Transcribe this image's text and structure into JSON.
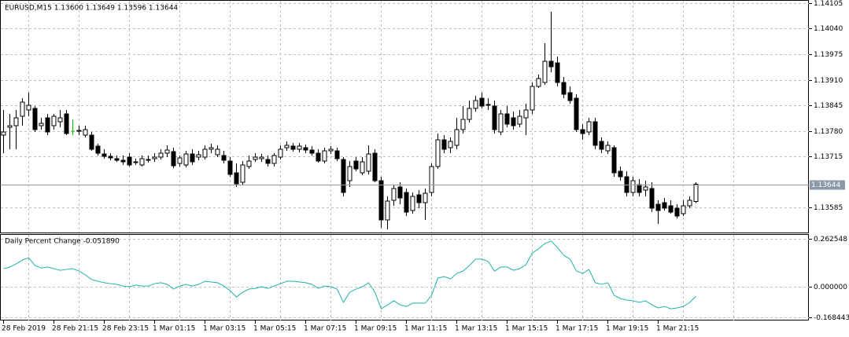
{
  "chart_data": {
    "type": "candlestick",
    "title": "EURUSD,M15  1.13600 1.13649 1.13596 1.13644",
    "categories": [
      "28 Feb 2019",
      null,
      null,
      null,
      null,
      null,
      null,
      null,
      "28 Feb 21:15",
      null,
      null,
      null,
      null,
      null,
      null,
      null,
      "28 Feb 23:15",
      null,
      null,
      null,
      null,
      null,
      null,
      null,
      "1 Mar 01:15",
      null,
      null,
      null,
      null,
      null,
      null,
      null,
      "1 Mar 03:15",
      null,
      null,
      null,
      null,
      null,
      null,
      null,
      "1 Mar 05:15",
      null,
      null,
      null,
      null,
      null,
      null,
      null,
      "1 Mar 07:15",
      null,
      null,
      null,
      null,
      null,
      null,
      null,
      "1 Mar 09:15",
      null,
      null,
      null,
      null,
      null,
      null,
      null,
      "1 Mar 11:15",
      null,
      null,
      null,
      null,
      null,
      null,
      null,
      "1 Mar 13:15",
      null,
      null,
      null,
      null,
      null,
      null,
      null,
      "1 Mar 15:15",
      null,
      null,
      null,
      null,
      null,
      null,
      null,
      "1 Mar 17:15",
      null,
      null,
      null,
      null,
      null,
      null,
      null,
      "1 Mar 19:15",
      null,
      null,
      null,
      null,
      null,
      null,
      null,
      "1 Mar 21:15",
      null,
      null,
      null,
      null,
      null,
      null
    ],
    "open": [
      1.13769,
      1.13789,
      1.13793,
      1.13817,
      1.13833,
      1.13837,
      1.13793,
      1.13813,
      1.13793,
      1.13803,
      1.13823,
      1.13779,
      1.13779,
      1.13769,
      1.13769,
      1.13741,
      1.13721,
      1.13715,
      1.13709,
      1.13705,
      1.13713,
      1.13701,
      1.13693,
      1.13707,
      1.13709,
      1.13713,
      1.13723,
      1.13727,
      1.13697,
      1.13693,
      1.13721,
      1.13713,
      1.13713,
      1.13733,
      1.13719,
      1.13717,
      1.13703,
      1.13673,
      1.13649,
      1.13689,
      1.13707,
      1.13709,
      1.13707,
      1.13697,
      1.13713,
      1.13737,
      1.13741,
      1.13733,
      1.13737,
      1.13731,
      1.13723,
      1.13703,
      1.13729,
      1.13729,
      1.13707,
      1.13653,
      1.13703,
      1.13673,
      1.13677,
      1.13723,
      1.13653,
      1.13553,
      1.13603,
      1.13637,
      1.13623,
      1.13577,
      1.13617,
      1.13597,
      1.13623,
      1.13689,
      1.13757,
      1.13737,
      1.13743,
      1.13783,
      1.13809,
      1.13837,
      1.13863,
      1.13847,
      1.13843,
      1.13777,
      1.13823,
      1.13813,
      1.13797,
      1.13813,
      1.13833,
      1.13893,
      1.13903,
      1.13957,
      1.13953,
      1.13903,
      1.13877,
      1.13863,
      1.13783,
      1.13777,
      1.13803,
      1.13753,
      1.13729,
      1.13737,
      1.13677,
      1.13663,
      1.13623,
      1.13643,
      1.13629,
      1.13633,
      1.13593,
      1.13597,
      1.13589,
      1.13583,
      1.13569,
      1.13589,
      1.136
    ],
    "high": [
      1.13833,
      1.13823,
      1.13833,
      1.13863,
      1.13877,
      1.13843,
      1.13813,
      1.13823,
      1.13823,
      1.13833,
      1.13833,
      1.13809,
      1.13793,
      1.13793,
      1.13777,
      1.13747,
      1.13733,
      1.13723,
      1.13717,
      1.13717,
      1.13723,
      1.13709,
      1.13717,
      1.13717,
      1.13723,
      1.13733,
      1.13743,
      1.13737,
      1.13717,
      1.13729,
      1.13733,
      1.13729,
      1.13743,
      1.13747,
      1.13743,
      1.13729,
      1.13713,
      1.13697,
      1.13703,
      1.13717,
      1.13723,
      1.13721,
      1.13717,
      1.13723,
      1.13743,
      1.13753,
      1.13749,
      1.13749,
      1.13745,
      1.13741,
      1.13733,
      1.13737,
      1.13741,
      1.13737,
      1.13713,
      1.13703,
      1.13713,
      1.13713,
      1.13743,
      1.13733,
      1.13663,
      1.13613,
      1.13643,
      1.13649,
      1.13633,
      1.13623,
      1.13629,
      1.13633,
      1.13697,
      1.13773,
      1.13769,
      1.13763,
      1.13813,
      1.13843,
      1.13857,
      1.13869,
      1.13877,
      1.13863,
      1.13857,
      1.13833,
      1.13843,
      1.13829,
      1.13833,
      1.13849,
      1.13903,
      1.13923,
      1.14003,
      1.14083,
      1.13969,
      1.13917,
      1.13893,
      1.13873,
      1.13797,
      1.13813,
      1.13813,
      1.13763,
      1.13753,
      1.13743,
      1.13689,
      1.13677,
      1.13663,
      1.13657,
      1.13653,
      1.13649,
      1.13603,
      1.13609,
      1.13603,
      1.13593,
      1.13603,
      1.13613,
      1.13649
    ],
    "low": [
      1.13723,
      1.13733,
      1.13733,
      1.13793,
      1.13817,
      1.13777,
      1.13783,
      1.13769,
      1.13783,
      1.13789,
      1.13769,
      1.13769,
      1.13769,
      1.13763,
      1.13729,
      1.13717,
      1.13709,
      1.13705,
      1.13701,
      1.13693,
      1.13689,
      1.13693,
      1.13689,
      1.13699,
      1.13701,
      1.13707,
      1.13713,
      1.13685,
      1.13689,
      1.13687,
      1.13693,
      1.13705,
      1.13707,
      1.13723,
      1.13713,
      1.13697,
      1.13663,
      1.13637,
      1.13643,
      1.13683,
      1.13701,
      1.13701,
      1.13689,
      1.13689,
      1.13707,
      1.13729,
      1.13727,
      1.13725,
      1.13723,
      1.13717,
      1.13699,
      1.13697,
      1.13721,
      1.13703,
      1.13613,
      1.13637,
      1.13677,
      1.13667,
      1.13669,
      1.13649,
      1.13533,
      1.13529,
      1.13589,
      1.13593,
      1.13563,
      1.13569,
      1.13583,
      1.13553,
      1.13613,
      1.13683,
      1.13723,
      1.13723,
      1.13733,
      1.13773,
      1.13801,
      1.13829,
      1.13837,
      1.13833,
      1.13773,
      1.13769,
      1.13789,
      1.13783,
      1.13789,
      1.13769,
      1.13823,
      1.13889,
      1.13897,
      1.13929,
      1.13893,
      1.13863,
      1.13849,
      1.13777,
      1.13757,
      1.13769,
      1.13733,
      1.13723,
      1.13721,
      1.13663,
      1.13653,
      1.13613,
      1.13613,
      1.13613,
      1.13613,
      1.13573,
      1.13543,
      1.13577,
      1.13569,
      1.13557,
      1.13563,
      1.13583,
      1.13596
    ],
    "close": [
      1.13777,
      1.13793,
      1.13813,
      1.13853,
      1.13845,
      1.13783,
      1.13799,
      1.13777,
      1.13817,
      1.13813,
      1.13773,
      1.13779,
      1.13781,
      1.13783,
      1.13733,
      1.13723,
      1.13715,
      1.13711,
      1.13705,
      1.13701,
      1.13693,
      1.13699,
      1.13709,
      1.13705,
      1.13713,
      1.13723,
      1.13731,
      1.13691,
      1.13711,
      1.13721,
      1.13701,
      1.13719,
      1.13733,
      1.13737,
      1.13733,
      1.13705,
      1.13669,
      1.13645,
      1.13693,
      1.13703,
      1.13713,
      1.13713,
      1.13697,
      1.13717,
      1.13733,
      1.13743,
      1.13733,
      1.13741,
      1.13731,
      1.13723,
      1.13703,
      1.13729,
      1.13733,
      1.13709,
      1.13623,
      1.13689,
      1.13683,
      1.13701,
      1.13721,
      1.13653,
      1.13553,
      1.13601,
      1.13633,
      1.13609,
      1.13573,
      1.13613,
      1.13597,
      1.13621,
      1.13689,
      1.13757,
      1.13733,
      1.13753,
      1.13783,
      1.13809,
      1.13837,
      1.13857,
      1.13843,
      1.13845,
      1.13783,
      1.13823,
      1.13797,
      1.13793,
      1.13817,
      1.13833,
      1.13893,
      1.13913,
      1.13957,
      1.13943,
      1.13903,
      1.13873,
      1.13857,
      1.13783,
      1.13773,
      1.13803,
      1.13743,
      1.13733,
      1.13743,
      1.13673,
      1.13663,
      1.13623,
      1.13653,
      1.13623,
      1.13637,
      1.13583,
      1.13577,
      1.13583,
      1.13573,
      1.13563,
      1.13589,
      1.13603,
      1.13644
    ],
    "up_color": "#ffffff",
    "down_color": "#000000",
    "doji_color": "#00c000",
    "ylim": [
      1.13521,
      1.14113
    ],
    "yticks": [
      1.14105,
      {
        "value": 1.1404,
        "label": "1.14040"
      },
      1.13975,
      {
        "value": 1.1391,
        "label": "1.13910"
      },
      1.13845,
      {
        "value": 1.1378,
        "label": "1.13780"
      },
      1.13715,
      1.13585
    ],
    "last_price_label": "1.13644",
    "grid": true,
    "indicator": {
      "type": "line",
      "title": "Daily Percent Change -0.051890",
      "color": "#20b2aa",
      "values": [
        0.099,
        0.108,
        0.125,
        0.146,
        0.159,
        0.116,
        0.103,
        0.108,
        0.099,
        0.09,
        0.095,
        0.099,
        0.086,
        0.065,
        0.039,
        0.03,
        0.022,
        0.017,
        0.013,
        0.004,
        0,
        0.009,
        0.004,
        0.004,
        0.017,
        0.022,
        0.013,
        -0.013,
        0.004,
        0.013,
        0.004,
        0.013,
        0.03,
        0.026,
        0.022,
        0.004,
        -0.022,
        -0.056,
        -0.03,
        -0.013,
        -0.009,
        0,
        -0.009,
        0.004,
        0.017,
        0.03,
        0.03,
        0.026,
        0.022,
        0.013,
        -0.009,
        0.004,
        0,
        -0.013,
        -0.086,
        -0.03,
        -0.013,
        0,
        0.022,
        -0.03,
        -0.121,
        -0.099,
        -0.077,
        -0.099,
        -0.108,
        -0.09,
        -0.09,
        -0.09,
        -0.047,
        0.047,
        0.056,
        0.043,
        0.073,
        0.086,
        0.116,
        0.151,
        0.151,
        0.138,
        0.086,
        0.108,
        0.108,
        0.09,
        0.099,
        0.121,
        0.185,
        0.207,
        0.237,
        0.25,
        0.215,
        0.172,
        0.151,
        0.086,
        0.073,
        0.095,
        0.022,
        0.013,
        0.022,
        -0.047,
        -0.065,
        -0.073,
        -0.077,
        -0.086,
        -0.077,
        -0.099,
        -0.116,
        -0.108,
        -0.121,
        -0.116,
        -0.108,
        -0.086,
        -0.05189
      ],
      "ylim": [
        -0.185,
        0.2884
      ],
      "yticks": [
        0.262548,
        {
          "value": 0,
          "label": "0.000000"
        },
        -0.168443
      ]
    }
  }
}
